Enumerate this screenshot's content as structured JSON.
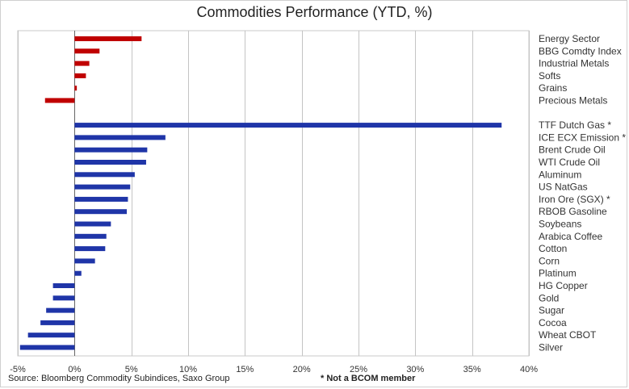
{
  "chart_data": {
    "type": "bar",
    "orientation": "horizontal",
    "title": "Commodities Performance (YTD, %)",
    "xlabel": "",
    "ylabel": "",
    "xlim": [
      -5,
      40
    ],
    "x_ticks": [
      -5,
      0,
      5,
      10,
      15,
      20,
      25,
      30,
      35,
      40
    ],
    "x_tick_labels": [
      "-5%",
      "0%",
      "5%",
      "10%",
      "15%",
      "20%",
      "25%",
      "30%",
      "35%",
      "40%"
    ],
    "grid": "vertical",
    "groups": [
      {
        "color": "#c00000",
        "categories": [
          "Energy Sector",
          "BBG Comdty Index",
          "Industrial Metals",
          "Softs",
          "Grains",
          "Precious Metals"
        ],
        "values": [
          5.9,
          2.2,
          1.3,
          1.0,
          0.2,
          -2.6
        ]
      },
      {
        "color": "#1f35a8",
        "categories": [
          "TTF Dutch Gas *",
          "ICE ECX Emission *",
          "Brent Crude Oil",
          "WTI Crude Oil",
          "Aluminum",
          "US NatGas",
          "Iron Ore (SGX) *",
          "RBOB Gasoline",
          "Soybeans",
          "Arabica Coffee",
          "Cotton",
          "Corn",
          "Platinum",
          "HG Copper",
          "Gold",
          "Sugar",
          "Cocoa",
          "Wheat CBOT",
          "Silver"
        ],
        "values": [
          37.6,
          8.0,
          6.4,
          6.3,
          5.3,
          4.9,
          4.7,
          4.6,
          3.2,
          2.8,
          2.7,
          1.8,
          0.6,
          -1.9,
          -1.9,
          -2.5,
          -3.0,
          -4.1,
          -4.8
        ]
      }
    ]
  },
  "source_note": "Source: Bloomberg Commodity Subindices, Saxo Group",
  "footnote": "* Not a BCOM member"
}
